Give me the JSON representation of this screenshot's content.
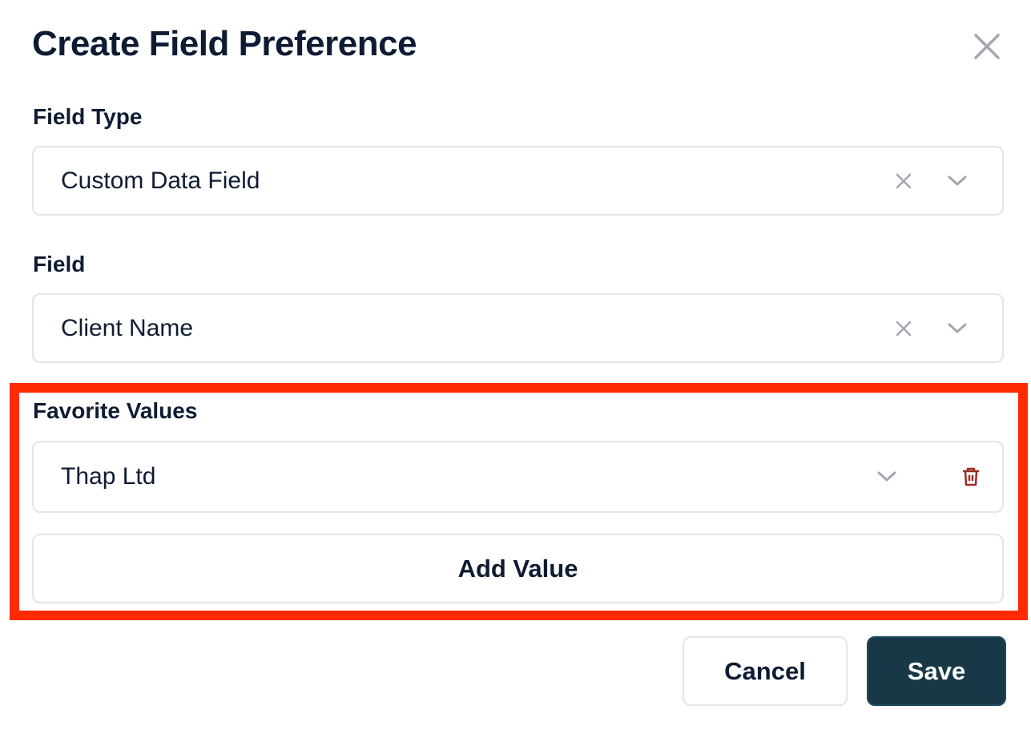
{
  "dialog": {
    "title": "Create Field Preference"
  },
  "field_type": {
    "label": "Field Type",
    "value": "Custom Data Field"
  },
  "field": {
    "label": "Field",
    "value": "Client Name"
  },
  "favorite_values": {
    "label": "Favorite Values",
    "items": [
      {
        "value": "Thap Ltd"
      }
    ],
    "add_label": "Add Value"
  },
  "footer": {
    "cancel_label": "Cancel",
    "save_label": "Save"
  },
  "colors": {
    "primary": "#183847",
    "danger": "#9b2c24",
    "highlight": "#ff2a00"
  }
}
